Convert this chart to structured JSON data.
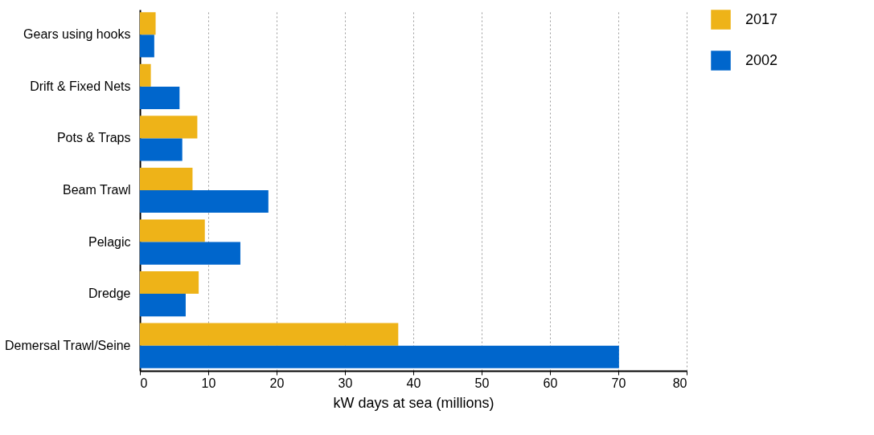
{
  "chart_data": {
    "type": "bar",
    "orientation": "horizontal",
    "xlabel": "kW days at sea (millions)",
    "categories": [
      "Gears using hooks",
      "Drift & Fixed Nets",
      "Pots & Traps",
      "Beam Trawl",
      "Pelagic",
      "Dredge",
      "Demersal Trawl/Seine"
    ],
    "series": [
      {
        "name": "2017",
        "color": "#eeb318",
        "values": [
          2.3,
          1.6,
          8.4,
          7.7,
          9.5,
          8.6,
          37.8
        ]
      },
      {
        "name": "2002",
        "color": "#0066cc",
        "values": [
          2.1,
          5.8,
          6.2,
          18.8,
          14.7,
          6.7,
          70.1
        ]
      }
    ],
    "xlim": [
      0,
      80
    ],
    "xticks": [
      0,
      10,
      20,
      30,
      40,
      50,
      60,
      70,
      80
    ],
    "grid": "x",
    "legend": "top right"
  }
}
